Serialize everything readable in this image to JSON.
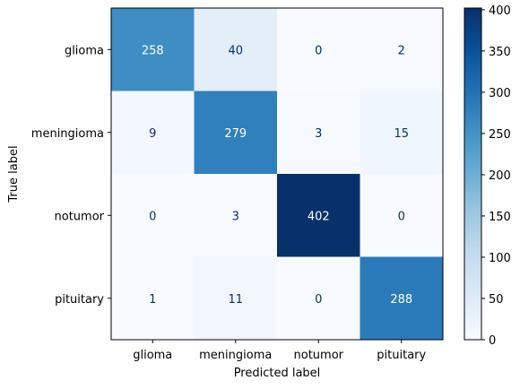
{
  "chart_data": {
    "type": "heatmap",
    "title": "",
    "xlabel": "Predicted label",
    "ylabel": "True label",
    "x_categories": [
      "glioma",
      "meningioma",
      "notumor",
      "pituitary"
    ],
    "y_categories": [
      "glioma",
      "meningioma",
      "notumor",
      "pituitary"
    ],
    "values": [
      [
        258,
        40,
        0,
        2
      ],
      [
        9,
        279,
        3,
        15
      ],
      [
        0,
        3,
        402,
        0
      ],
      [
        1,
        11,
        0,
        288
      ]
    ],
    "colormap": "Blues",
    "vmin": 0,
    "vmax": 402,
    "colorbar_ticks": [
      0,
      50,
      100,
      150,
      200,
      250,
      300,
      350,
      400
    ],
    "text_color_light": "#ffffff",
    "text_color_dark": "#08306b"
  }
}
